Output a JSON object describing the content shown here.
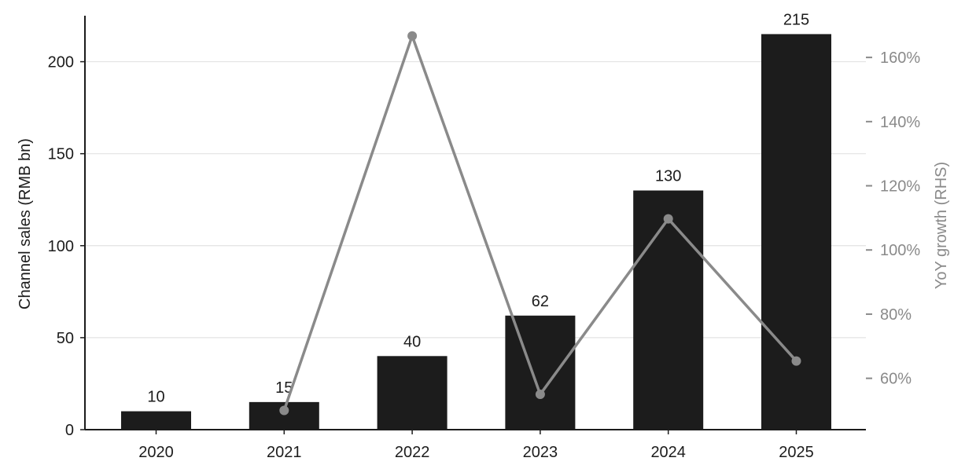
{
  "chart_data": {
    "type": "bar",
    "categories": [
      "2020",
      "2021",
      "2022",
      "2023",
      "2024",
      "2025"
    ],
    "series": [
      {
        "type": "bar",
        "axis": "left",
        "values": [
          10,
          15,
          40,
          62,
          130,
          215
        ],
        "color": "#1c1c1c"
      },
      {
        "type": "line",
        "axis": "right",
        "values": [
          null,
          50,
          166.7,
          55,
          109.7,
          65.4
        ],
        "color": "#8a8a8a"
      }
    ],
    "data_labels": [
      "10",
      "15",
      "40",
      "62",
      "130",
      "215"
    ],
    "ylabel": "Channel sales (RMB bn)",
    "ylabel_right": "YoY growth (RHS)",
    "ylim": [
      0,
      225
    ],
    "ylim_right": [
      44,
      173
    ],
    "yticks": [
      0,
      50,
      100,
      150,
      200
    ],
    "yticks_right": [
      60,
      80,
      100,
      120,
      140,
      160
    ],
    "ytick_labels_right": [
      "60%",
      "80%",
      "100%",
      "120%",
      "140%",
      "160%"
    ],
    "grid": true,
    "legend": "none"
  }
}
